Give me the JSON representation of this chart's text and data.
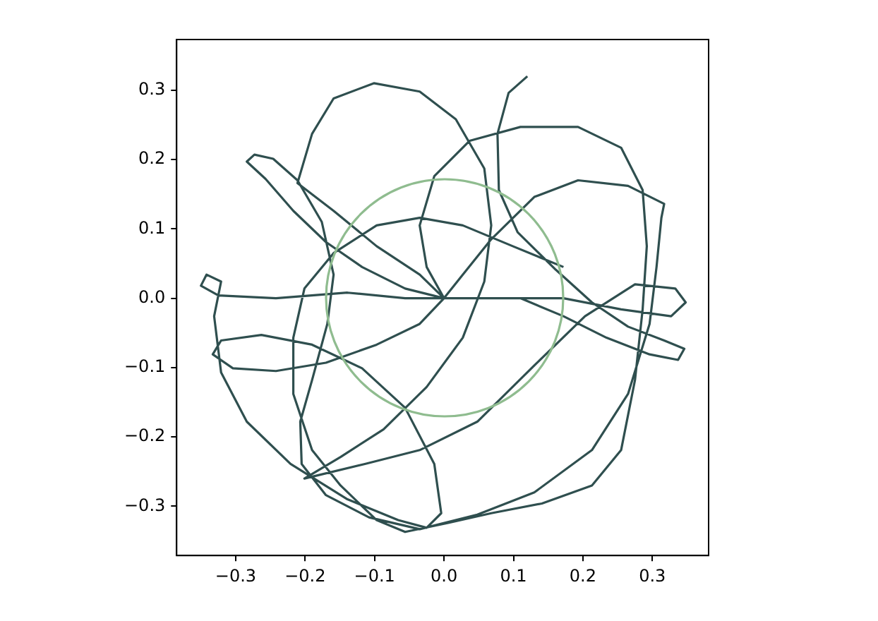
{
  "chart_data": {
    "type": "line",
    "xlim": [
      -0.385,
      0.381
    ],
    "ylim": [
      -0.371,
      0.373
    ],
    "xticks": [
      {
        "value": -0.3,
        "label": "−0.3"
      },
      {
        "value": -0.2,
        "label": "−0.2"
      },
      {
        "value": -0.1,
        "label": "−0.1"
      },
      {
        "value": 0,
        "label": "0.0"
      },
      {
        "value": 0.1,
        "label": "0.1"
      },
      {
        "value": 0.2,
        "label": "0.2"
      },
      {
        "value": 0.3,
        "label": "0.3"
      }
    ],
    "yticks": [
      {
        "value": -0.3,
        "label": "−0.3"
      },
      {
        "value": -0.2,
        "label": "−0.2"
      },
      {
        "value": -0.1,
        "label": "−0.1"
      },
      {
        "value": 0,
        "label": "0.0"
      },
      {
        "value": 0.1,
        "label": "0.1"
      },
      {
        "value": 0.2,
        "label": "0.2"
      },
      {
        "value": 0.3,
        "label": "0.3"
      }
    ],
    "grid": false,
    "legend": false,
    "marker": "none",
    "line_style": "solid",
    "series": [
      {
        "color": "#2f4f4f",
        "x": [
          0.12,
          0.093,
          0.077,
          0.079,
          0.106,
          0.161,
          0.213,
          0.265,
          0.317,
          0.346,
          0.337,
          0.296,
          0.234,
          0.172,
          0.11,
          0.048,
          0,
          -0.056,
          -0.118,
          -0.17,
          -0.217,
          -0.257,
          -0.284,
          -0.273,
          -0.246,
          -0.211,
          -0.176,
          -0.159,
          -0.168,
          -0.19,
          -0.207,
          -0.205,
          -0.17,
          -0.108,
          -0.035,
          0.048,
          0.13,
          0.213,
          0.265,
          0.296,
          0.306,
          0.313,
          0.317,
          0.265,
          0.193,
          0.13,
          0.068,
          0.027,
          0,
          -0.035,
          -0.097,
          -0.17,
          -0.242,
          -0.304,
          -0.333,
          -0.321,
          -0.263,
          -0.19,
          -0.118,
          -0.056,
          -0.014,
          -0.004,
          -0.025,
          -0.066,
          -0.139,
          -0.221,
          -0.284,
          -0.321,
          -0.331,
          -0.321,
          -0.342,
          -0.35,
          -0.325,
          -0.242,
          -0.139,
          -0.056,
          0,
          -0.035,
          -0.097,
          -0.159,
          -0.211,
          -0.19,
          -0.159,
          -0.101,
          -0.035,
          0.017,
          0.058,
          0.068,
          0.058,
          0.027,
          -0.025,
          -0.087,
          -0.149,
          -0.201,
          -0.114,
          -0.035,
          0.048,
          0.13,
          0.203,
          0.275,
          0.333,
          0.348,
          0.327,
          0.255,
          0.172,
          0.089,
          0,
          -0.025,
          -0.035,
          -0.014,
          0.037,
          0.11,
          0.193,
          0.255,
          0.286,
          0.292,
          0.286,
          0.275,
          0.255,
          0.213,
          0.141,
          0.068,
          0.006,
          -0.056,
          -0.097,
          -0.149,
          -0.19,
          -0.217,
          -0.217,
          -0.201,
          -0.159,
          -0.097,
          -0.035,
          0.027,
          0.099,
          0.172
        ],
        "values": [
          0.32,
          0.296,
          0.237,
          0.156,
          0.095,
          0.041,
          -0.006,
          -0.041,
          -0.061,
          -0.073,
          -0.089,
          -0.081,
          -0.057,
          -0.026,
          0,
          0,
          0,
          0.014,
          0.045,
          0.081,
          0.126,
          0.172,
          0.197,
          0.207,
          0.201,
          0.17,
          0.11,
          0.034,
          -0.037,
          -0.118,
          -0.178,
          -0.239,
          -0.284,
          -0.316,
          -0.333,
          -0.312,
          -0.28,
          -0.219,
          -0.138,
          -0.037,
          0.045,
          0.116,
          0.136,
          0.162,
          0.17,
          0.146,
          0.085,
          0.034,
          0,
          -0.037,
          -0.067,
          -0.093,
          -0.105,
          -0.101,
          -0.081,
          -0.061,
          -0.053,
          -0.067,
          -0.101,
          -0.158,
          -0.239,
          -0.31,
          -0.331,
          -0.32,
          -0.29,
          -0.239,
          -0.178,
          -0.107,
          -0.026,
          0.024,
          0.034,
          0.018,
          0.004,
          0,
          0.008,
          0,
          0,
          0.034,
          0.075,
          0.126,
          0.166,
          0.237,
          0.288,
          0.31,
          0.298,
          0.258,
          0.187,
          0.105,
          0.024,
          -0.057,
          -0.128,
          -0.189,
          -0.229,
          -0.26,
          -0.239,
          -0.219,
          -0.178,
          -0.097,
          -0.026,
          0.02,
          0.014,
          -0.006,
          -0.026,
          -0.016,
          0,
          0,
          0,
          0.045,
          0.105,
          0.176,
          0.227,
          0.247,
          0.247,
          0.217,
          0.156,
          0.075,
          -0.016,
          -0.118,
          -0.219,
          -0.27,
          -0.296,
          -0.31,
          -0.324,
          -0.337,
          -0.32,
          -0.27,
          -0.219,
          -0.138,
          -0.057,
          0.014,
          0.065,
          0.105,
          0.116,
          0.105,
          0.075,
          0.045
        ]
      }
    ]
  }
}
